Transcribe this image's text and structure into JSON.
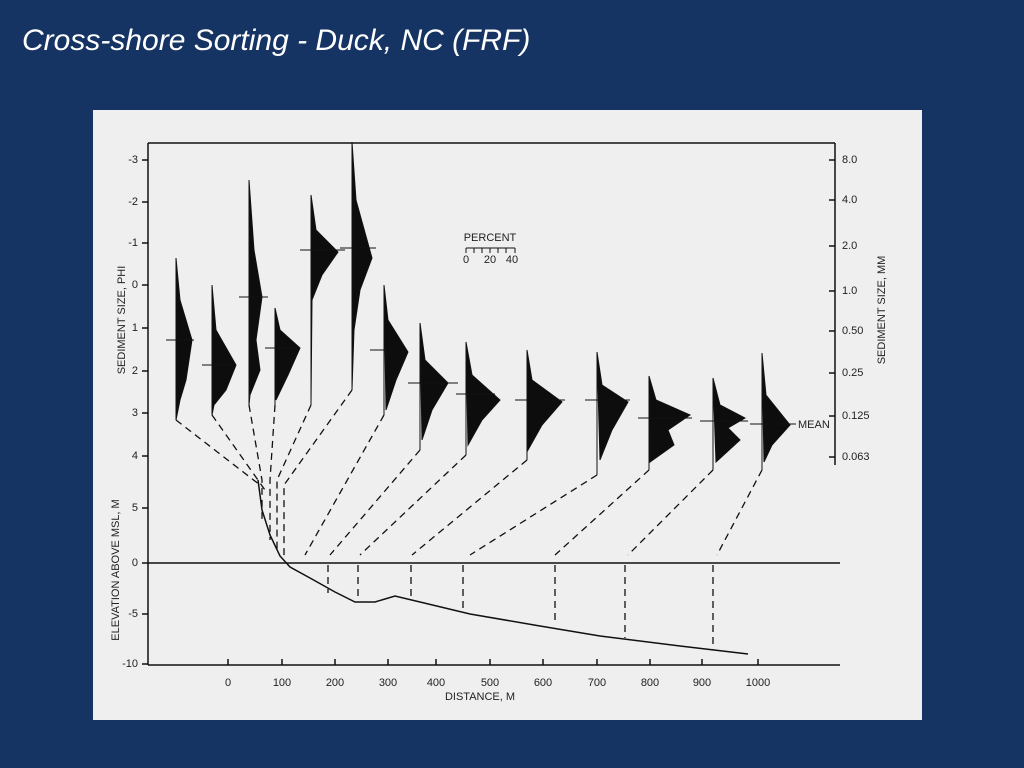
{
  "header": {
    "title": "Cross-shore Sorting - Duck, NC (FRF)"
  },
  "figure": {
    "phi_axis": {
      "label": "SEDIMENT SIZE, PHI",
      "ticks": [
        "-3",
        "-2",
        "-1",
        "0",
        "1",
        "2",
        "3",
        "4"
      ]
    },
    "mm_axis": {
      "label": "SEDIMENT SIZE, MM",
      "ticks": [
        "8.0",
        "4.0",
        "2.0",
        "1.0",
        "0.50",
        "0.25",
        "0.125",
        "0.063"
      ]
    },
    "elevation_axis": {
      "label": "ELEVATION ABOVE MSL, M",
      "ticks": [
        "5",
        "0",
        "-5",
        "-10"
      ]
    },
    "distance_axis": {
      "label": "DISTANCE, M",
      "ticks": [
        "0",
        "100",
        "200",
        "300",
        "400",
        "500",
        "600",
        "700",
        "800",
        "900",
        "1000"
      ]
    },
    "percent_scale": {
      "label": "PERCENT",
      "ticks": [
        "0",
        "20",
        "40"
      ]
    },
    "mean_label": "MEAN"
  }
}
